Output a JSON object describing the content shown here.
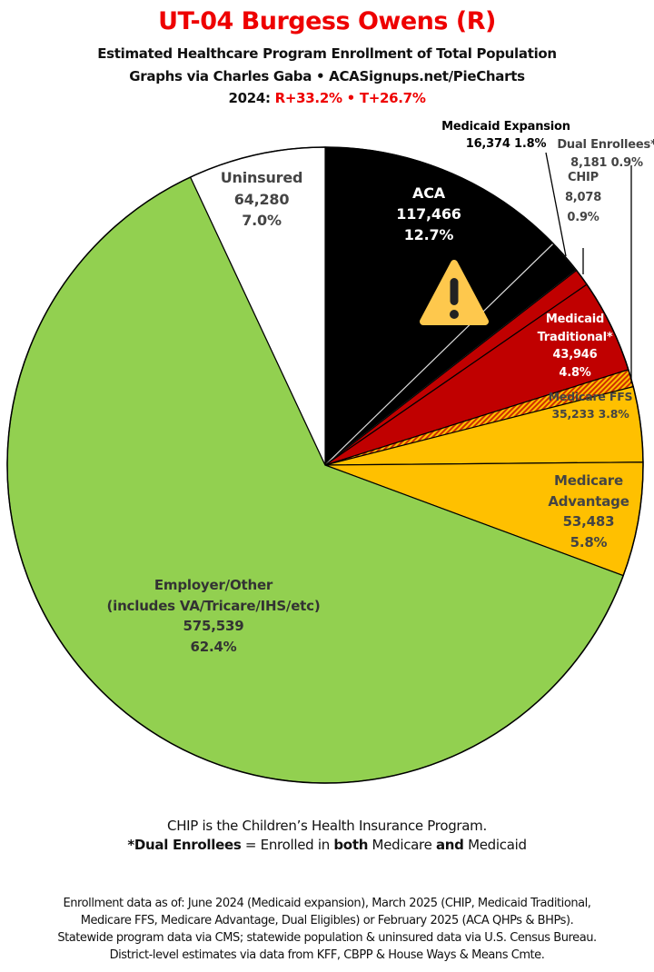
{
  "header": {
    "title": "UT-04 Burgess Owens (R)",
    "subtitle": "Estimated Healthcare Program Enrollment of Total Population",
    "credit": "Graphs via Charles Gaba  •  ACASignups.net/PieCharts",
    "year_label": "2024:",
    "margins": "R+33.2%  •  T+26.7%"
  },
  "chart_data": {
    "type": "pie",
    "title": "UT-04 Burgess Owens (R)",
    "start": "top",
    "direction": "clockwise",
    "slices": [
      {
        "name": "ACA",
        "value": 117466,
        "percent": 12.7,
        "color": "#000000",
        "lines": [
          "ACA",
          "117,466",
          "12.7%"
        ]
      },
      {
        "name": "Medicaid Expansion",
        "value": 16374,
        "percent": 1.8,
        "color": "#000000",
        "lines": [
          "Medicaid Expansion",
          "16,374 1.8%"
        ]
      },
      {
        "name": "CHIP",
        "value": 8078,
        "percent": 0.9,
        "color": "#c00000",
        "lines": [
          "CHIP",
          "8,078",
          "0.9%"
        ]
      },
      {
        "name": "Medicaid Traditional*",
        "value": 43946,
        "percent": 4.8,
        "color": "#c00000",
        "lines": [
          "Medicaid",
          "Traditional*",
          "43,946",
          "4.8%"
        ]
      },
      {
        "name": "Dual Enrollees*",
        "value": 8181,
        "percent": 0.9,
        "color": "hatched #c00000/#ffc000",
        "lines": [
          "Dual Enrollees*",
          "8,181 0.9%"
        ]
      },
      {
        "name": "Medicare FFS",
        "value": 35233,
        "percent": 3.8,
        "color": "#ffc000",
        "lines": [
          "Medicare FFS",
          "35,233 3.8%"
        ]
      },
      {
        "name": "Medicare Advantage",
        "value": 53483,
        "percent": 5.8,
        "color": "#ffc000",
        "lines": [
          "Medicare",
          "Advantage",
          "53,483",
          "5.8%"
        ]
      },
      {
        "name": "Employer/Other (includes VA/Tricare/IHS/etc)",
        "value": 575539,
        "percent": 62.4,
        "color": "#92d050",
        "lines": [
          "Employer/Other",
          "(includes VA/Tricare/IHS/etc)",
          "575,539",
          "62.4%"
        ]
      },
      {
        "name": "Uninsured",
        "value": 64280,
        "percent": 7.0,
        "color": "#ffffff",
        "lines": [
          "Uninsured",
          "64,280",
          "7.0%"
        ]
      }
    ],
    "annotation_icon": "warning-icon"
  },
  "notes": {
    "line1": "CHIP is the Children’s Health Insurance Program.",
    "line2_bold1": "*Dual Enrollees",
    "line2_t1": " = Enrolled in ",
    "line2_bold2": "both",
    "line2_t2": " Medicare ",
    "line2_bold3": "and",
    "line2_t3": " Medicaid"
  },
  "footer": [
    "Enrollment data as of: June 2024 (Medicaid expansion), March 2025 (CHIP, Medicaid Traditional,",
    "Medicare FFS, Medicare Advantage, Dual Eligibles) or February 2025 (ACA QHPs & BHPs).",
    "Statewide program data via CMS; statewide population & uninsured data via U.S. Census Bureau.",
    "District-level estimates via data from KFF, CBPP & House Ways & Means Cmte."
  ]
}
